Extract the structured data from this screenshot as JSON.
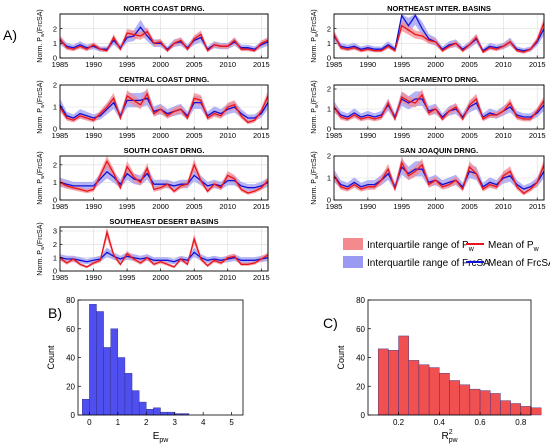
{
  "figure": {
    "panel_labels": [
      "A)",
      "B)",
      "C)"
    ],
    "legend": {
      "iqr_pw": "Interquartile range of P",
      "iqr_pw_sub": "w",
      "mean_pw": "Mean of P",
      "mean_pw_sub": "w",
      "iqr_frcsa": "Interquartile range of FrcSA",
      "mean_frcsa": "Mean of FrcSA"
    },
    "colors": {
      "pw_line": "#e8141c",
      "pw_band": "#f58a8e",
      "frcsa_line": "#1212d6",
      "frcsa_band": "#9a9af2",
      "hist_b": "#4f4ff0",
      "hist_c": "#f05050"
    }
  },
  "chart_data": [
    {
      "type": "line",
      "title": "NORTH COAST DRNG.",
      "ylabel": "Norm. P",
      "ylabel_sub": "w",
      "ylabel_tail": "(FrcSA)",
      "x": [
        1985,
        1986,
        1987,
        1988,
        1989,
        1990,
        1991,
        1992,
        1993,
        1994,
        1995,
        1996,
        1997,
        1998,
        1999,
        2000,
        2001,
        2002,
        2003,
        2004,
        2005,
        2006,
        2007,
        2008,
        2009,
        2010,
        2011,
        2012,
        2013,
        2014,
        2015,
        2016
      ],
      "xticks": [
        1985,
        1990,
        1995,
        2000,
        2005,
        2010,
        2015
      ],
      "xlim": [
        1985,
        2016
      ],
      "yticks": [
        0,
        1,
        2
      ],
      "ylim": [
        0,
        3
      ],
      "series": [
        {
          "key": "pw",
          "values": [
            1.3,
            0.7,
            0.6,
            0.8,
            0.6,
            0.9,
            0.6,
            0.5,
            1.4,
            0.6,
            1.7,
            1.6,
            1.5,
            1.8,
            1.0,
            1.1,
            0.5,
            1.0,
            1.2,
            0.6,
            1.3,
            1.6,
            0.5,
            0.9,
            0.8,
            0.8,
            1.2,
            0.6,
            0.6,
            0.5,
            1.0,
            1.2
          ]
        },
        {
          "key": "frcsa",
          "values": [
            1.2,
            0.8,
            0.7,
            0.9,
            0.7,
            0.8,
            0.6,
            0.6,
            1.2,
            0.7,
            1.4,
            1.5,
            2.1,
            1.5,
            1.0,
            1.0,
            0.6,
            1.0,
            1.1,
            0.7,
            1.2,
            1.4,
            0.6,
            0.9,
            0.8,
            0.8,
            1.1,
            0.7,
            0.7,
            0.6,
            0.9,
            1.1
          ]
        }
      ]
    },
    {
      "type": "line",
      "title": "CENTRAL COAST DRNG.",
      "ylabel": "Norm. P",
      "ylabel_sub": "w",
      "ylabel_tail": "(FrcSA)",
      "x": [
        1985,
        1986,
        1987,
        1988,
        1989,
        1990,
        1991,
        1992,
        1993,
        1994,
        1995,
        1996,
        1997,
        1998,
        1999,
        2000,
        2001,
        2002,
        2003,
        2004,
        2005,
        2006,
        2007,
        2008,
        2009,
        2010,
        2011,
        2012,
        2013,
        2014,
        2015,
        2016
      ],
      "xticks": [
        1985,
        1990,
        1995,
        2000,
        2005,
        2010,
        2015
      ],
      "xlim": [
        1985,
        2016
      ],
      "yticks": [
        0,
        1,
        2
      ],
      "ylim": [
        0,
        2
      ],
      "series": [
        {
          "key": "pw",
          "values": [
            1.0,
            0.5,
            0.4,
            0.6,
            0.5,
            0.4,
            0.7,
            1.0,
            1.4,
            0.5,
            1.5,
            1.3,
            1.1,
            1.6,
            0.7,
            0.9,
            0.6,
            0.8,
            0.9,
            0.5,
            1.4,
            1.3,
            0.5,
            0.7,
            0.6,
            1.0,
            1.1,
            0.6,
            0.3,
            0.4,
            0.8,
            1.5
          ]
        },
        {
          "key": "frcsa",
          "values": [
            1.1,
            0.6,
            0.5,
            0.7,
            0.6,
            0.5,
            0.6,
            0.9,
            1.2,
            0.6,
            1.3,
            1.3,
            1.3,
            1.4,
            0.8,
            0.9,
            0.7,
            0.8,
            0.9,
            0.6,
            1.2,
            1.2,
            0.6,
            0.8,
            0.7,
            0.9,
            1.0,
            0.7,
            0.5,
            0.5,
            0.7,
            1.2
          ]
        }
      ]
    },
    {
      "type": "line",
      "title": "SOUTH COAST DRNG.",
      "ylabel": "Norm. P",
      "ylabel_sub": "w",
      "ylabel_tail": "(FrcSA)",
      "x": [
        1985,
        1986,
        1987,
        1988,
        1989,
        1990,
        1991,
        1992,
        1993,
        1994,
        1995,
        1996,
        1997,
        1998,
        1999,
        2000,
        2001,
        2002,
        2003,
        2004,
        2005,
        2006,
        2007,
        2008,
        2009,
        2010,
        2011,
        2012,
        2013,
        2014,
        2015,
        2016
      ],
      "xticks": [
        1985,
        1990,
        1995,
        2000,
        2005,
        2010,
        2015
      ],
      "xlim": [
        1985,
        2016
      ],
      "yticks": [
        0,
        1,
        2
      ],
      "ylim": [
        0,
        2.5
      ],
      "series": [
        {
          "key": "pw",
          "values": [
            1.0,
            0.8,
            0.7,
            0.6,
            0.5,
            0.6,
            1.4,
            2.2,
            1.5,
            0.7,
            1.9,
            1.3,
            1.0,
            1.8,
            0.6,
            0.7,
            0.9,
            0.5,
            0.8,
            0.9,
            2.0,
            1.1,
            0.5,
            0.9,
            0.7,
            1.4,
            1.2,
            0.6,
            0.4,
            0.5,
            0.7,
            1.1
          ]
        },
        {
          "key": "frcsa",
          "values": [
            1.0,
            0.9,
            0.8,
            0.8,
            0.8,
            0.8,
            1.2,
            1.6,
            1.3,
            0.9,
            1.5,
            1.2,
            1.1,
            1.5,
            0.9,
            0.9,
            0.9,
            0.8,
            0.9,
            0.9,
            1.4,
            1.1,
            0.8,
            0.9,
            0.8,
            1.1,
            1.1,
            0.8,
            0.7,
            0.7,
            0.8,
            1.0
          ]
        }
      ]
    },
    {
      "type": "line",
      "title": "SOUTHEAST DESERT BASINS",
      "ylabel": "Norm. P",
      "ylabel_sub": "w",
      "ylabel_tail": "(FrcSA)",
      "x": [
        1985,
        1986,
        1987,
        1988,
        1989,
        1990,
        1991,
        1992,
        1993,
        1994,
        1995,
        1996,
        1997,
        1998,
        1999,
        2000,
        2001,
        2002,
        2003,
        2004,
        2005,
        2006,
        2007,
        2008,
        2009,
        2010,
        2011,
        2012,
        2013,
        2014,
        2015,
        2016
      ],
      "xticks": [
        1985,
        1990,
        1995,
        2000,
        2005,
        2010,
        2015
      ],
      "xlim": [
        1985,
        2016
      ],
      "yticks": [
        0,
        1,
        2,
        3
      ],
      "ylim": [
        0,
        3.3
      ],
      "series": [
        {
          "key": "pw",
          "values": [
            1.0,
            0.6,
            0.9,
            0.5,
            0.3,
            0.6,
            0.8,
            2.9,
            1.2,
            0.5,
            1.3,
            0.9,
            0.6,
            1.0,
            0.5,
            0.7,
            0.5,
            0.3,
            0.9,
            0.5,
            2.4,
            0.9,
            0.4,
            0.8,
            0.6,
            1.0,
            1.1,
            0.5,
            0.5,
            0.6,
            0.9,
            1.2
          ]
        },
        {
          "key": "frcsa",
          "values": [
            1.0,
            0.9,
            0.9,
            0.8,
            0.7,
            0.8,
            0.9,
            1.4,
            1.1,
            0.9,
            1.1,
            1.0,
            0.9,
            1.0,
            0.8,
            0.8,
            0.8,
            0.7,
            0.9,
            0.8,
            1.4,
            1.0,
            0.8,
            0.9,
            0.8,
            0.9,
            1.0,
            0.8,
            0.8,
            0.8,
            0.9,
            1.0
          ]
        }
      ]
    },
    {
      "type": "line",
      "title": "NORTHEAST INTER. BASINS",
      "ylabel": "Norm. P",
      "ylabel_sub": "w",
      "ylabel_tail": "(FrcSA)",
      "x": [
        1985,
        1986,
        1987,
        1988,
        1989,
        1990,
        1991,
        1992,
        1993,
        1994,
        1995,
        1996,
        1997,
        1998,
        1999,
        2000,
        2001,
        2002,
        2003,
        2004,
        2005,
        2006,
        2007,
        2008,
        2009,
        2010,
        2011,
        2012,
        2013,
        2014,
        2015,
        2016
      ],
      "xticks": [
        1985,
        1990,
        1995,
        2000,
        2005,
        2010,
        2015
      ],
      "xlim": [
        1985,
        2016
      ],
      "yticks": [
        0,
        1,
        2
      ],
      "ylim": [
        0,
        3
      ],
      "series": [
        {
          "key": "pw",
          "values": [
            1.6,
            0.7,
            0.6,
            0.7,
            0.5,
            0.6,
            0.5,
            0.5,
            0.8,
            0.5,
            2.2,
            1.9,
            1.6,
            1.5,
            1.2,
            1.1,
            0.5,
            0.8,
            1.0,
            0.5,
            0.9,
            1.4,
            0.4,
            0.7,
            0.6,
            0.8,
            1.1,
            0.5,
            0.4,
            0.6,
            1.2,
            2.4
          ]
        },
        {
          "key": "frcsa",
          "values": [
            1.5,
            0.8,
            0.7,
            0.8,
            0.6,
            0.7,
            0.6,
            0.6,
            0.9,
            0.6,
            2.9,
            2.2,
            2.9,
            2.0,
            1.3,
            1.1,
            0.6,
            0.9,
            1.0,
            0.6,
            0.9,
            1.3,
            0.5,
            0.8,
            0.7,
            0.8,
            1.1,
            0.6,
            0.5,
            0.6,
            1.1,
            2.0
          ]
        }
      ]
    },
    {
      "type": "line",
      "title": "SACRAMENTO DRNG.",
      "ylabel": "Norm. P",
      "ylabel_sub": "w",
      "ylabel_tail": "(FrcSA)",
      "x": [
        1985,
        1986,
        1987,
        1988,
        1989,
        1990,
        1991,
        1992,
        1993,
        1994,
        1995,
        1996,
        1997,
        1998,
        1999,
        2000,
        2001,
        2002,
        2003,
        2004,
        2005,
        2006,
        2007,
        2008,
        2009,
        2010,
        2011,
        2012,
        2013,
        2014,
        2015,
        2016
      ],
      "xticks": [
        1985,
        1990,
        1995,
        2000,
        2005,
        2010,
        2015
      ],
      "xlim": [
        1985,
        2016
      ],
      "yticks": [
        0,
        1,
        2
      ],
      "ylim": [
        0,
        2.2
      ],
      "series": [
        {
          "key": "pw",
          "values": [
            1.1,
            0.6,
            0.5,
            0.7,
            0.5,
            0.6,
            0.5,
            0.6,
            1.3,
            0.5,
            1.6,
            1.4,
            1.3,
            1.7,
            0.8,
            1.0,
            0.5,
            0.9,
            1.1,
            0.5,
            1.2,
            1.5,
            0.5,
            0.7,
            0.7,
            0.9,
            1.3,
            0.6,
            0.5,
            0.5,
            0.9,
            1.4
          ]
        },
        {
          "key": "frcsa",
          "values": [
            1.1,
            0.7,
            0.6,
            0.8,
            0.6,
            0.7,
            0.6,
            0.7,
            1.2,
            0.6,
            1.5,
            1.3,
            1.5,
            1.5,
            0.9,
            1.0,
            0.6,
            0.9,
            1.0,
            0.6,
            1.1,
            1.3,
            0.6,
            0.8,
            0.7,
            0.9,
            1.1,
            0.7,
            0.6,
            0.6,
            0.8,
            1.2
          ]
        }
      ]
    },
    {
      "type": "line",
      "title": "SAN JOAQUIN DRNG.",
      "ylabel": "Norm. P",
      "ylabel_sub": "w",
      "ylabel_tail": "(FrcSA)",
      "x": [
        1985,
        1986,
        1987,
        1988,
        1989,
        1990,
        1991,
        1992,
        1993,
        1994,
        1995,
        1996,
        1997,
        1998,
        1999,
        2000,
        2001,
        2002,
        2003,
        2004,
        2005,
        2006,
        2007,
        2008,
        2009,
        2010,
        2011,
        2012,
        2013,
        2014,
        2015,
        2016
      ],
      "xticks": [
        1985,
        1990,
        1995,
        2000,
        2005,
        2010,
        2015
      ],
      "xlim": [
        1985,
        2016
      ],
      "yticks": [
        0,
        1,
        2
      ],
      "ylim": [
        0,
        2
      ],
      "series": [
        {
          "key": "pw",
          "values": [
            1.1,
            0.6,
            0.5,
            0.7,
            0.5,
            0.6,
            0.6,
            0.9,
            1.4,
            0.5,
            1.7,
            1.1,
            1.3,
            1.6,
            0.7,
            0.9,
            0.6,
            0.7,
            0.9,
            0.5,
            1.5,
            1.2,
            0.5,
            0.7,
            0.6,
            1.1,
            1.3,
            0.6,
            0.3,
            0.5,
            0.8,
            1.6
          ]
        },
        {
          "key": "frcsa",
          "values": [
            1.1,
            0.7,
            0.6,
            0.8,
            0.6,
            0.7,
            0.7,
            0.9,
            1.2,
            0.6,
            1.5,
            1.2,
            1.4,
            1.4,
            0.8,
            0.9,
            0.7,
            0.8,
            0.9,
            0.6,
            1.3,
            1.2,
            0.6,
            0.8,
            0.7,
            1.0,
            1.1,
            0.7,
            0.5,
            0.6,
            0.8,
            1.3
          ]
        }
      ]
    },
    {
      "type": "bar",
      "subtype": "histogram",
      "xlabel": "E",
      "xlabel_sub": "pw",
      "ylabel": "Count",
      "bin_start": -0.25,
      "bin_width": 0.25,
      "values": [
        11,
        77,
        72,
        47,
        60,
        40,
        29,
        17,
        9,
        4,
        5,
        2,
        2,
        1,
        1,
        0
      ],
      "xticks": [
        0,
        1,
        2,
        3,
        4,
        5
      ],
      "xlim": [
        -0.4,
        5.4
      ],
      "yticks": [
        0,
        20,
        40,
        60,
        80
      ],
      "ylim": [
        0,
        80
      ]
    },
    {
      "type": "bar",
      "subtype": "histogram",
      "xlabel": "R",
      "xlabel_sup": "2",
      "xlabel_sub": "pw",
      "ylabel": "Count",
      "bin_start": 0.1,
      "bin_width": 0.05,
      "values": [
        46,
        45,
        55,
        38,
        35,
        33,
        29,
        24,
        21,
        18,
        17,
        15,
        10,
        8,
        6,
        5
      ],
      "xticks": [
        0.2,
        0.4,
        0.6,
        0.8
      ],
      "xlim": [
        0.05,
        0.85
      ],
      "yticks": [
        0,
        20,
        40,
        60,
        80
      ],
      "ylim": [
        0,
        80
      ]
    }
  ]
}
